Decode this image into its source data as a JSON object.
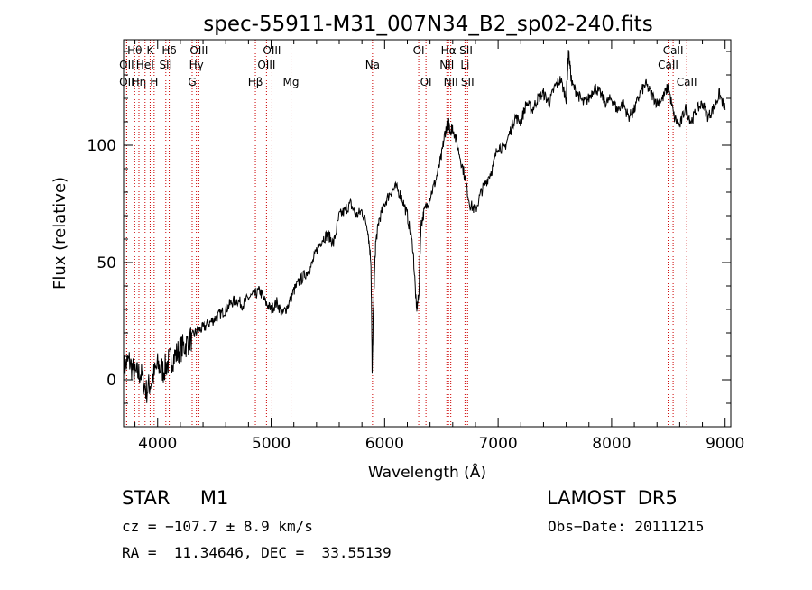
{
  "chart_data": {
    "type": "line",
    "title": "spec-55911-M31_007N34_B2_sp02-240.fits",
    "xlabel": "Wavelength (Å)",
    "ylabel": "Flux (relative)",
    "xlim": [
      3700,
      9050
    ],
    "ylim": [
      -20,
      145
    ],
    "x_ticks": [
      4000,
      5000,
      6000,
      7000,
      8000,
      9000
    ],
    "y_ticks": [
      0,
      50,
      100
    ],
    "grid": false,
    "colors": {
      "spectrum": "#000000",
      "lines": "#cc0000"
    },
    "series": [
      {
        "x": [
          3700,
          3750,
          3800,
          3850,
          3900,
          3950,
          4000,
          4050,
          4100,
          4150,
          4200,
          4250,
          4300,
          4350,
          4400,
          4450,
          4500,
          4550,
          4600,
          4650,
          4700,
          4750,
          4800,
          4850,
          4900,
          4950,
          5000,
          5050,
          5100,
          5150,
          5200,
          5250,
          5300,
          5350,
          5400,
          5450,
          5500,
          5550,
          5600,
          5650,
          5700,
          5750,
          5800,
          5850,
          5880,
          5890,
          5900,
          5920,
          5950,
          6000,
          6050,
          6100,
          6150,
          6200,
          6250,
          6280,
          6300,
          6320,
          6350,
          6400,
          6450,
          6500,
          6530,
          6560,
          6580,
          6600,
          6650,
          6700,
          6750,
          6800,
          6850,
          6900,
          6950,
          7000,
          7050,
          7100,
          7150,
          7200,
          7250,
          7300,
          7350,
          7400,
          7450,
          7500,
          7550,
          7600,
          7620,
          7650,
          7700,
          7750,
          7800,
          7850,
          7900,
          7950,
          8000,
          8050,
          8100,
          8150,
          8200,
          8250,
          8300,
          8350,
          8400,
          8450,
          8500,
          8550,
          8600,
          8650,
          8700,
          8750,
          8800,
          8850,
          8900,
          8950,
          9000
        ],
        "y": [
          5,
          8,
          2,
          3,
          -5,
          0,
          6,
          4,
          8,
          10,
          13,
          15,
          18,
          21,
          22,
          24,
          26,
          28,
          30,
          33,
          34,
          32,
          35,
          36,
          38,
          33,
          30,
          33,
          28,
          32,
          38,
          42,
          45,
          48,
          55,
          60,
          62,
          58,
          70,
          72,
          75,
          70,
          72,
          65,
          50,
          2,
          28,
          58,
          68,
          75,
          80,
          82,
          78,
          70,
          56,
          30,
          35,
          66,
          72,
          78,
          85,
          95,
          105,
          110,
          106,
          108,
          98,
          88,
          75,
          72,
          80,
          85,
          90,
          100,
          98,
          105,
          112,
          110,
          118,
          115,
          120,
          122,
          118,
          125,
          128,
          120,
          140,
          126,
          122,
          118,
          120,
          125,
          122,
          118,
          120,
          115,
          118,
          112,
          115,
          122,
          126,
          122,
          118,
          120,
          125,
          112,
          108,
          116,
          110,
          115,
          118,
          112,
          116,
          122,
          115
        ]
      }
    ],
    "line_markers": [
      {
        "label": "Hθ",
        "x": 3798,
        "row": 1
      },
      {
        "label": "OII",
        "x": 3727,
        "row": 2
      },
      {
        "label": "OII",
        "x": 3727,
        "row": 3
      },
      {
        "label": "Hη",
        "x": 3835,
        "row": 3
      },
      {
        "label": "HeI",
        "x": 3889,
        "row": 2
      },
      {
        "label": "K",
        "x": 3934,
        "row": 1
      },
      {
        "label": "H",
        "x": 3969,
        "row": 3
      },
      {
        "label": "Hδ",
        "x": 4102,
        "row": 1
      },
      {
        "label": "SII",
        "x": 4072,
        "row": 2
      },
      {
        "label": "OIII",
        "x": 4363,
        "row": 1
      },
      {
        "label": "Hγ",
        "x": 4341,
        "row": 2
      },
      {
        "label": "G",
        "x": 4304,
        "row": 3
      },
      {
        "label": "Hβ",
        "x": 4861,
        "row": 3
      },
      {
        "label": "OIII",
        "x": 5007,
        "row": 1
      },
      {
        "label": "OIII",
        "x": 4959,
        "row": 2
      },
      {
        "label": "Mg",
        "x": 5175,
        "row": 3
      },
      {
        "label": "Na",
        "x": 5893,
        "row": 2
      },
      {
        "label": "OI",
        "x": 6300,
        "row": 1
      },
      {
        "label": "OI",
        "x": 6364,
        "row": 3
      },
      {
        "label": "Hα",
        "x": 6563,
        "row": 1
      },
      {
        "label": "NII",
        "x": 6548,
        "row": 2
      },
      {
        "label": "NII",
        "x": 6583,
        "row": 3
      },
      {
        "label": "SII",
        "x": 6717,
        "row": 1
      },
      {
        "label": "Li",
        "x": 6708,
        "row": 2
      },
      {
        "label": "SII",
        "x": 6731,
        "row": 3
      },
      {
        "label": "CaII",
        "x": 8542,
        "row": 1
      },
      {
        "label": "CaII",
        "x": 8498,
        "row": 2
      },
      {
        "label": "CaII",
        "x": 8662,
        "row": 3
      }
    ]
  },
  "footer": {
    "object": "STAR     M1",
    "survey": "LAMOST  DR5",
    "cz": "cz = −107.7 ± 8.9 km/s",
    "obs_date": "Obs−Date: 20111215",
    "coords": "RA =  11.34646, DEC =  33.55139"
  }
}
